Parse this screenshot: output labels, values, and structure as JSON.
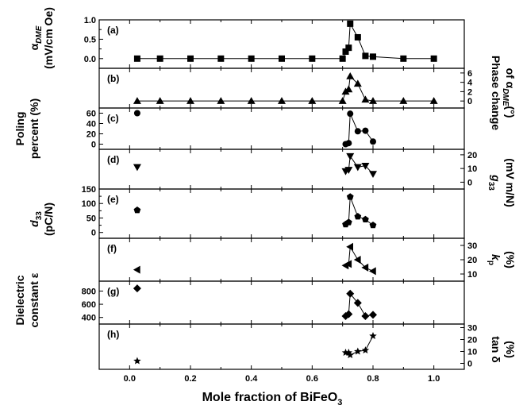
{
  "chart_data": {
    "type": "scatter",
    "xlabel": {
      "main": "Mole fraction of BiFeO",
      "sub": "3"
    },
    "xlim": [
      -0.1,
      1.1
    ],
    "xticks": [
      "0.0",
      "0.2",
      "0.4",
      "0.6",
      "0.8",
      "1.0"
    ],
    "panels": [
      {
        "label": "(a)",
        "marker": "square",
        "connected": true,
        "side": "left",
        "ylim": [
          -0.25,
          1.0
        ],
        "yticks": [
          "0.0",
          "0.5",
          "1.0"
        ],
        "minor_yticks": [
          "0.25",
          "0.75"
        ],
        "x": [
          0.025,
          0.1,
          0.2,
          0.3,
          0.4,
          0.5,
          0.6,
          0.7,
          0.71,
          0.72,
          0.725,
          0.75,
          0.775,
          0.8,
          0.9,
          1.0
        ],
        "y": [
          0.0,
          0.0,
          0.0,
          0.0,
          0.0,
          0.0,
          0.0,
          0.0,
          0.18,
          0.28,
          0.9,
          0.55,
          0.07,
          0.05,
          0.0,
          0.0
        ]
      },
      {
        "label": "(b)",
        "marker": "triangle-up",
        "connected": true,
        "side": "right",
        "ylim": [
          -1.5,
          7.0
        ],
        "yticks": [
          "0",
          "2",
          "4",
          "6"
        ],
        "x": [
          0.025,
          0.1,
          0.2,
          0.3,
          0.4,
          0.5,
          0.6,
          0.7,
          0.71,
          0.72,
          0.725,
          0.75,
          0.775,
          0.8,
          0.9,
          1.0
        ],
        "y": [
          0.0,
          0.0,
          0.0,
          0.0,
          0.0,
          0.0,
          0.0,
          0.0,
          2.0,
          2.5,
          5.3,
          3.7,
          0.3,
          0.0,
          0.0,
          0.0
        ]
      },
      {
        "label": "(c)",
        "marker": "circle",
        "connected": true,
        "side": "left",
        "ylim": [
          -10,
          70
        ],
        "yticks": [
          "0",
          "20",
          "40",
          "60"
        ],
        "x": [
          0.025,
          0.71,
          0.72,
          0.725,
          0.75,
          0.775,
          0.8
        ],
        "y": [
          60,
          0,
          2,
          59,
          25,
          26,
          5
        ]
      },
      {
        "label": "(d)",
        "marker": "triangle-down",
        "connected": true,
        "side": "right",
        "ylim": [
          -5,
          24
        ],
        "yticks": [
          "0",
          "10",
          "20"
        ],
        "x": [
          0.025,
          0.71,
          0.72,
          0.725,
          0.75,
          0.775,
          0.8
        ],
        "y": [
          11,
          8,
          9,
          19,
          11,
          12,
          6
        ]
      },
      {
        "label": "(e)",
        "marker": "pentagon",
        "connected": true,
        "side": "left",
        "ylim": [
          -20,
          150
        ],
        "yticks": [
          "0",
          "50",
          "100",
          "150"
        ],
        "minor_yticks": [
          "25",
          "75",
          "125"
        ],
        "x": [
          0.025,
          0.71,
          0.72,
          0.725,
          0.75,
          0.775,
          0.8
        ],
        "y": [
          77,
          28,
          35,
          123,
          55,
          45,
          25
        ]
      },
      {
        "label": "(f)",
        "marker": "triangle-left",
        "connected": true,
        "side": "right",
        "ylim": [
          5,
          35
        ],
        "yticks": [
          "10",
          "20",
          "30"
        ],
        "x": [
          0.025,
          0.71,
          0.72,
          0.725,
          0.75,
          0.775,
          0.8
        ],
        "y": [
          13,
          16,
          17,
          29,
          20,
          14.5,
          12
        ]
      },
      {
        "label": "(g)",
        "marker": "diamond",
        "connected": true,
        "side": "left",
        "ylim": [
          300,
          950
        ],
        "yticks": [
          "400",
          "600",
          "800"
        ],
        "x": [
          0.025,
          0.71,
          0.72,
          0.725,
          0.75,
          0.775,
          0.8
        ],
        "y": [
          840,
          420,
          450,
          760,
          620,
          420,
          440
        ]
      },
      {
        "label": "(h)",
        "marker": "star",
        "connected": true,
        "side": "right",
        "ylim": [
          -5,
          33
        ],
        "yticks": [
          "0",
          "10",
          "20",
          "30"
        ],
        "x": [
          0.025,
          0.71,
          0.72,
          0.725,
          0.75,
          0.775,
          0.8
        ],
        "y": [
          2,
          9,
          9,
          7,
          10,
          11,
          23
        ]
      }
    ],
    "axis_titles": {
      "a_left": {
        "l1": "α",
        "l1_sub": "DME",
        "l2": "(mV/cm Oe)"
      },
      "b_right": {
        "l1": "Phase change",
        "l2": "of α",
        "l2_sub": "DME",
        "l2_end": "(°)"
      },
      "c_left": {
        "l1": "Poling",
        "l2": "percent (%)"
      },
      "d_right": {
        "l1": "g",
        "l1_sub": "33",
        "l2": "(mV m/N)"
      },
      "e_left": {
        "l1": "d",
        "l1_sub": "33",
        "l2": "(pC/N)"
      },
      "f_right": {
        "l1": "k",
        "l1_sub": "p",
        "l2": "(%)"
      },
      "g_left": {
        "l1": "Dielectric",
        "l2": "constant ε"
      },
      "h_right": {
        "l1": "tan δ",
        "l2": "(%)"
      }
    }
  }
}
